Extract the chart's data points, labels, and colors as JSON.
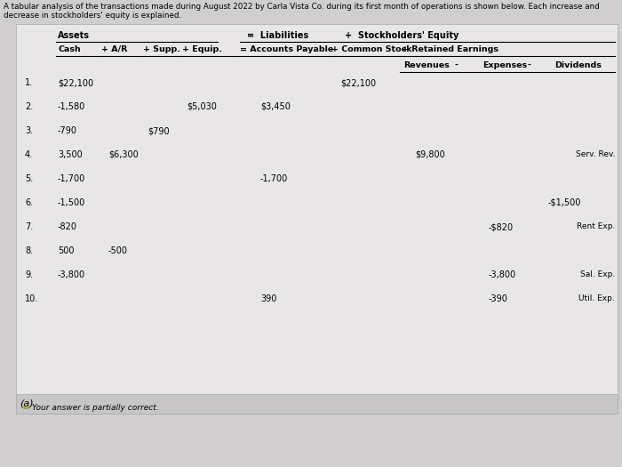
{
  "title_line1": "A tabular analysis of the transactions made during August 2022 by Carla Vista Co. during its first month of operations is shown below. Each increase and",
  "title_line2": "decrease in stockholders' equity is explained.",
  "bg_color": "#d0cece",
  "table_bg": "#e8e6e6",
  "footer_bg": "#c8c6c6",
  "rows": [
    {
      "num": "1.",
      "cash": "$22,100",
      "ar": "",
      "supp": "",
      "equip": "",
      "ap": "",
      "cs": "$22,100",
      "rev": "",
      "exp": "",
      "div": "",
      "note": ""
    },
    {
      "num": "2.",
      "cash": "-1,580",
      "ar": "",
      "supp": "",
      "equip": "$5,030",
      "ap": "$3,450",
      "cs": "",
      "rev": "",
      "exp": "",
      "div": "",
      "note": ""
    },
    {
      "num": "3.",
      "cash": "-790",
      "ar": "",
      "supp": "$790",
      "equip": "",
      "ap": "",
      "cs": "",
      "rev": "",
      "exp": "",
      "div": "",
      "note": ""
    },
    {
      "num": "4.",
      "cash": "3,500",
      "ar": "$6,300",
      "supp": "",
      "equip": "",
      "ap": "",
      "cs": "",
      "rev": "$9,800",
      "exp": "",
      "div": "",
      "note": "Serv. Rev."
    },
    {
      "num": "5.",
      "cash": "-1,700",
      "ar": "",
      "supp": "",
      "equip": "",
      "ap": "-1,700",
      "cs": "",
      "rev": "",
      "exp": "",
      "div": "",
      "note": ""
    },
    {
      "num": "6.",
      "cash": "-1,500",
      "ar": "",
      "supp": "",
      "equip": "",
      "ap": "",
      "cs": "",
      "rev": "",
      "exp": "",
      "div": "-$1,500",
      "note": ""
    },
    {
      "num": "7.",
      "cash": "-820",
      "ar": "",
      "supp": "",
      "equip": "",
      "ap": "",
      "cs": "",
      "rev": "",
      "exp": "-$820",
      "div": "",
      "note": "Rent Exp."
    },
    {
      "num": "8.",
      "cash": "500",
      "ar": "-500",
      "supp": "",
      "equip": "",
      "ap": "",
      "cs": "",
      "rev": "",
      "exp": "",
      "div": "",
      "note": ""
    },
    {
      "num": "9.",
      "cash": "-3,800",
      "ar": "",
      "supp": "",
      "equip": "",
      "ap": "",
      "cs": "",
      "rev": "",
      "exp": "-3,800",
      "div": "",
      "note": "Sal. Exp."
    },
    {
      "num": "10.",
      "cash": "",
      "ar": "",
      "supp": "",
      "equip": "",
      "ap": "390",
      "cs": "",
      "rev": "",
      "exp": "-390",
      "div": "",
      "note": "Util. Exp."
    }
  ],
  "footer_label": "(a)",
  "footer_note": "Your answer is partially correct."
}
